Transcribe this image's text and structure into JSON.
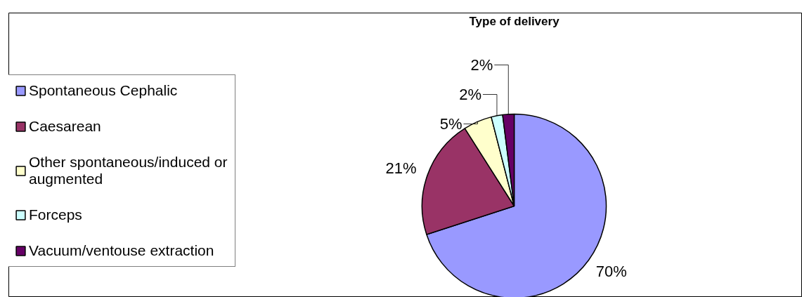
{
  "chart_data": {
    "type": "pie",
    "title": "Type of delivery",
    "categories": [
      "Spontaneous Cephalic",
      "Caesarean",
      "Other spontaneous/induced or augmented",
      "Forceps",
      "Vacuum/ventouse extraction"
    ],
    "values": [
      70,
      21,
      5,
      2,
      2
    ],
    "value_labels": [
      "70%",
      "21%",
      "5%",
      "2%",
      "2%"
    ],
    "colors": [
      "#9999ff",
      "#993366",
      "#ffffcc",
      "#ccffff",
      "#660066"
    ],
    "legend": "left"
  }
}
